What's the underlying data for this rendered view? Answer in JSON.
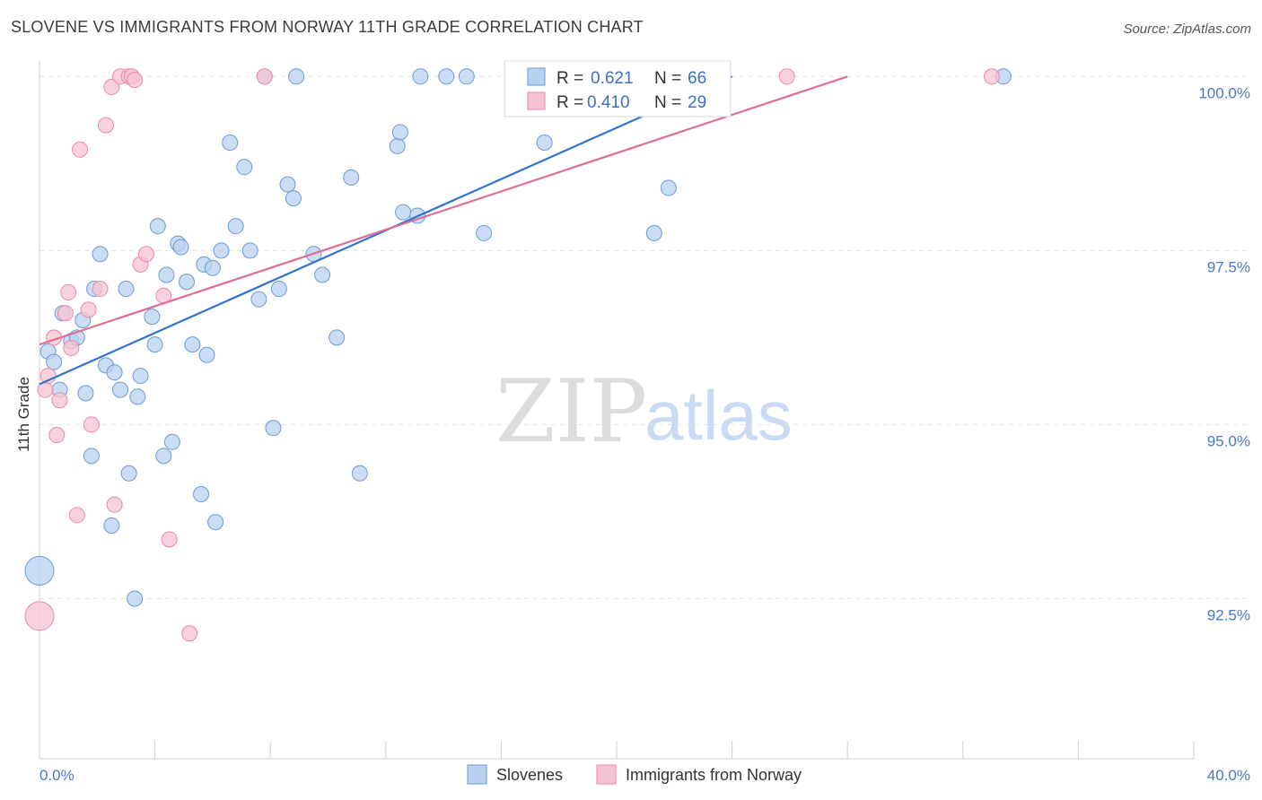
{
  "title": "SLOVENE VS IMMIGRANTS FROM NORWAY 11TH GRADE CORRELATION CHART",
  "source": "Source: ZipAtlas.com",
  "watermark": {
    "zip": "ZIP",
    "atlas": "atlas"
  },
  "chart_data": {
    "type": "scatter",
    "xlabel": "",
    "ylabel": "11th Grade",
    "xlim": [
      0,
      40
    ],
    "ylim": [
      90.2,
      100.3
    ],
    "x_tick_labels": [
      "0.0%",
      "40.0%"
    ],
    "y_ticks": [
      {
        "value": 100.0,
        "label": "100.0%"
      },
      {
        "value": 97.5,
        "label": "97.5%"
      },
      {
        "value": 95.0,
        "label": "95.0%"
      },
      {
        "value": 92.5,
        "label": "92.5%"
      }
    ],
    "legend": [
      {
        "r_label": "R =",
        "r_value": "0.621",
        "n_label": "N =",
        "n_value": "66"
      },
      {
        "r_label": "R =",
        "r_value": "0.410",
        "n_label": "N =",
        "n_value": "29"
      }
    ],
    "series": [
      {
        "name": "Slovenes",
        "color": "#6a9ad6",
        "fill": "#b9d1f0",
        "line_color": "#2f73d0",
        "trend": {
          "x0": 0.0,
          "y0": 95.58,
          "x1": 24.0,
          "y1": 100.0
        },
        "points": [
          {
            "x": 0.0,
            "y": 92.9,
            "big": true
          },
          {
            "x": 0.3,
            "y": 96.05
          },
          {
            "x": 0.5,
            "y": 95.9
          },
          {
            "x": 0.7,
            "y": 95.5
          },
          {
            "x": 0.8,
            "y": 96.6
          },
          {
            "x": 1.1,
            "y": 96.2
          },
          {
            "x": 1.3,
            "y": 96.25
          },
          {
            "x": 1.5,
            "y": 96.5
          },
          {
            "x": 1.6,
            "y": 95.45
          },
          {
            "x": 1.8,
            "y": 94.55
          },
          {
            "x": 1.9,
            "y": 96.95
          },
          {
            "x": 2.1,
            "y": 97.45
          },
          {
            "x": 2.3,
            "y": 95.85
          },
          {
            "x": 2.5,
            "y": 93.55
          },
          {
            "x": 2.6,
            "y": 95.75
          },
          {
            "x": 2.8,
            "y": 95.5
          },
          {
            "x": 3.0,
            "y": 96.95
          },
          {
            "x": 3.1,
            "y": 94.3
          },
          {
            "x": 3.3,
            "y": 92.5
          },
          {
            "x": 3.4,
            "y": 95.4
          },
          {
            "x": 3.5,
            "y": 95.7
          },
          {
            "x": 3.9,
            "y": 96.55
          },
          {
            "x": 4.0,
            "y": 96.15
          },
          {
            "x": 4.1,
            "y": 97.85
          },
          {
            "x": 4.3,
            "y": 94.55
          },
          {
            "x": 4.4,
            "y": 97.15
          },
          {
            "x": 4.6,
            "y": 94.75
          },
          {
            "x": 4.8,
            "y": 97.6
          },
          {
            "x": 4.9,
            "y": 97.55
          },
          {
            "x": 5.1,
            "y": 97.05
          },
          {
            "x": 5.3,
            "y": 96.15
          },
          {
            "x": 5.6,
            "y": 94.0
          },
          {
            "x": 5.7,
            "y": 97.3
          },
          {
            "x": 5.8,
            "y": 96.0
          },
          {
            "x": 6.0,
            "y": 97.25
          },
          {
            "x": 6.1,
            "y": 93.6
          },
          {
            "x": 6.3,
            "y": 97.5
          },
          {
            "x": 6.6,
            "y": 99.05
          },
          {
            "x": 6.8,
            "y": 97.85
          },
          {
            "x": 7.1,
            "y": 98.7
          },
          {
            "x": 7.3,
            "y": 97.5
          },
          {
            "x": 7.6,
            "y": 96.8
          },
          {
            "x": 7.8,
            "y": 100.0
          },
          {
            "x": 8.1,
            "y": 94.95
          },
          {
            "x": 8.3,
            "y": 96.95
          },
          {
            "x": 8.6,
            "y": 98.45
          },
          {
            "x": 8.8,
            "y": 98.25
          },
          {
            "x": 8.9,
            "y": 100.0
          },
          {
            "x": 9.5,
            "y": 97.45
          },
          {
            "x": 9.8,
            "y": 97.15
          },
          {
            "x": 10.3,
            "y": 96.25
          },
          {
            "x": 10.8,
            "y": 98.55
          },
          {
            "x": 11.1,
            "y": 94.3
          },
          {
            "x": 12.4,
            "y": 99.0
          },
          {
            "x": 12.5,
            "y": 99.2
          },
          {
            "x": 12.6,
            "y": 98.05
          },
          {
            "x": 13.1,
            "y": 98.0
          },
          {
            "x": 13.2,
            "y": 100.0
          },
          {
            "x": 14.1,
            "y": 100.0
          },
          {
            "x": 14.8,
            "y": 100.0
          },
          {
            "x": 15.4,
            "y": 97.75
          },
          {
            "x": 17.5,
            "y": 99.05
          },
          {
            "x": 21.3,
            "y": 97.75
          },
          {
            "x": 21.8,
            "y": 98.4
          },
          {
            "x": 23.6,
            "y": 100.0
          },
          {
            "x": 33.4,
            "y": 100.0
          }
        ]
      },
      {
        "name": "Immigrants from Norway",
        "color": "#e88aa8",
        "fill": "#f7c3d2",
        "line_color": "#de6e94",
        "trend": {
          "x0": 0.0,
          "y0": 96.15,
          "x1": 28.0,
          "y1": 100.0
        },
        "points": [
          {
            "x": 0.0,
            "y": 92.25,
            "big": true
          },
          {
            "x": 0.2,
            "y": 95.5
          },
          {
            "x": 0.3,
            "y": 95.7
          },
          {
            "x": 0.5,
            "y": 96.25
          },
          {
            "x": 0.6,
            "y": 94.85
          },
          {
            "x": 0.7,
            "y": 95.35
          },
          {
            "x": 0.9,
            "y": 96.6
          },
          {
            "x": 1.0,
            "y": 96.9
          },
          {
            "x": 1.1,
            "y": 96.1
          },
          {
            "x": 1.3,
            "y": 93.7
          },
          {
            "x": 1.4,
            "y": 98.95
          },
          {
            "x": 1.7,
            "y": 96.65
          },
          {
            "x": 1.8,
            "y": 95.0
          },
          {
            "x": 2.1,
            "y": 96.95
          },
          {
            "x": 2.3,
            "y": 99.3
          },
          {
            "x": 2.5,
            "y": 99.85
          },
          {
            "x": 2.6,
            "y": 93.85
          },
          {
            "x": 2.8,
            "y": 100.0
          },
          {
            "x": 3.1,
            "y": 100.0
          },
          {
            "x": 3.2,
            "y": 100.0
          },
          {
            "x": 3.3,
            "y": 99.95
          },
          {
            "x": 3.5,
            "y": 97.3
          },
          {
            "x": 3.7,
            "y": 97.45
          },
          {
            "x": 4.3,
            "y": 96.85
          },
          {
            "x": 4.5,
            "y": 93.35
          },
          {
            "x": 5.2,
            "y": 92.0
          },
          {
            "x": 7.8,
            "y": 100.0
          },
          {
            "x": 25.9,
            "y": 100.0
          },
          {
            "x": 33.0,
            "y": 100.0
          }
        ]
      }
    ]
  }
}
